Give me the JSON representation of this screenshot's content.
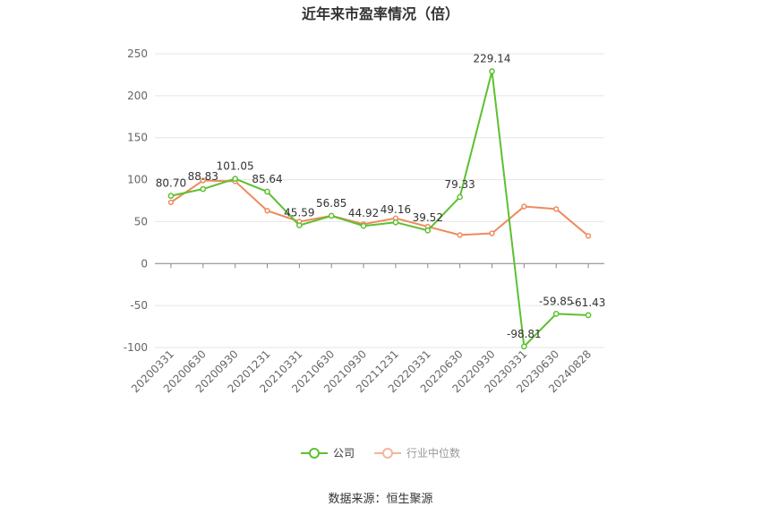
{
  "chart_data": {
    "type": "line",
    "title": "近年来市盈率情况（倍）",
    "categories": [
      "20200331",
      "20200630",
      "20200930",
      "20201231",
      "20210331",
      "20210630",
      "20210930",
      "20211231",
      "20220331",
      "20220630",
      "20220930",
      "20230331",
      "20230630",
      "20240828"
    ],
    "ylim": [
      -100,
      250
    ],
    "yticks": [
      -100,
      -50,
      0,
      50,
      100,
      150,
      200,
      250
    ],
    "grid": true,
    "legend_position": "bottom",
    "series": [
      {
        "name": "公司",
        "color": "#5cc130",
        "values": [
          80.7,
          88.83,
          101.05,
          85.64,
          45.59,
          56.85,
          44.92,
          49.16,
          39.52,
          79.33,
          229.14,
          -98.81,
          -59.85,
          -61.43
        ],
        "labels": [
          "80.70",
          "88.83",
          "101.05",
          "85.64",
          "45.59",
          "56.85",
          "44.92",
          "49.16",
          "39.52",
          "79.33",
          "229.14",
          "-98.81",
          "-59.85",
          "-61.43"
        ]
      },
      {
        "name": "行业中位数",
        "color": "#ef8a5c",
        "values": [
          73,
          99,
          98,
          63,
          50,
          57,
          47,
          54,
          44,
          34,
          36,
          68,
          65,
          33
        ]
      }
    ],
    "source": "数据来源：恒生聚源"
  }
}
